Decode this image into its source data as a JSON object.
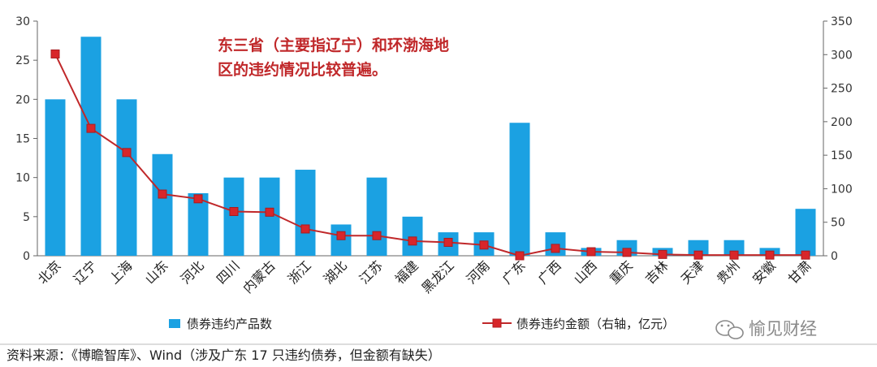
{
  "chart_data": {
    "type": "bar",
    "categories": [
      "北京",
      "辽宁",
      "上海",
      "山东",
      "河北",
      "四川",
      "内蒙古",
      "浙江",
      "湖北",
      "江苏",
      "福建",
      "黑龙江",
      "河南",
      "广东",
      "广西",
      "山西",
      "重庆",
      "吉林",
      "天津",
      "贵州",
      "安徽",
      "甘肃"
    ],
    "series": [
      {
        "name": "债券违约产品数",
        "type": "bar",
        "axis": "left",
        "color": "#1ba1e2",
        "values": [
          20,
          28,
          20,
          13,
          8,
          10,
          10,
          11,
          4,
          10,
          5,
          3,
          3,
          17,
          3,
          1,
          2,
          1,
          2,
          2,
          1,
          6
        ]
      },
      {
        "name": "债券违约金额（右轴，亿元）",
        "type": "line",
        "axis": "right",
        "color": "#c0282a",
        "marker_color": "#d8262a",
        "values": [
          301,
          190,
          154,
          92,
          85,
          66,
          65,
          40,
          30,
          30,
          22,
          20,
          16,
          0,
          11,
          6,
          5,
          2,
          1,
          1,
          1,
          1
        ]
      }
    ],
    "y_left": {
      "ylim": [
        0,
        30
      ],
      "ticks": [
        "0",
        "5",
        "10",
        "15",
        "20",
        "25",
        "30"
      ]
    },
    "y_right": {
      "ylim": [
        0,
        350
      ],
      "ticks": [
        "0",
        "50",
        "100",
        "150",
        "200",
        "250",
        "300",
        "350"
      ]
    },
    "legend_position": "bottom",
    "annotation": [
      "东三省（主要指辽宁）和环渤海地",
      "区的违约情况比较普遍。"
    ],
    "grid": false
  },
  "source_text": "资料来源：《博瞻智库》、Wind（涉及广东 17 只违约债券，但金额有缺失）",
  "watermark_text": "愉见财经"
}
